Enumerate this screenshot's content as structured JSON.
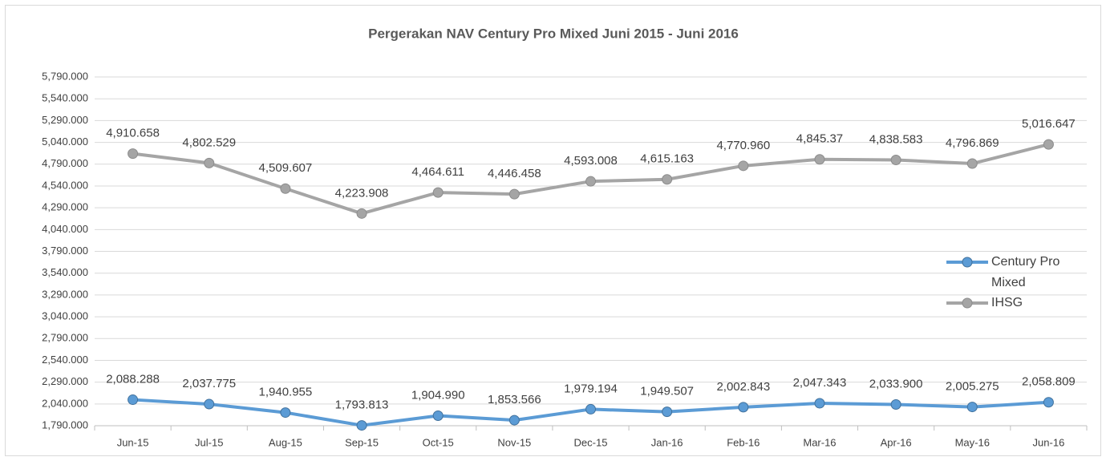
{
  "chart_data": {
    "type": "line",
    "title": "Pergerakan NAV Century Pro Mixed Juni 2015 - Juni 2016",
    "categories": [
      "Jun-15",
      "Jul-15",
      "Aug-15",
      "Sep-15",
      "Oct-15",
      "Nov-15",
      "Dec-15",
      "Jan-16",
      "Feb-16",
      "Mar-16",
      "Apr-16",
      "May-16",
      "Jun-16"
    ],
    "series": [
      {
        "name": "Century Pro Mixed",
        "color": "#5b9bd5",
        "values": [
          2088.288,
          2037.775,
          1940.955,
          1793.813,
          1904.99,
          1853.566,
          1979.194,
          1949.507,
          2002.843,
          2047.343,
          2033.9,
          2005.275,
          2058.809
        ],
        "value_labels": [
          "2,088.288",
          "2,037.775",
          "1,940.955",
          "1,793.813",
          "1,904.990",
          "1,853.566",
          "1,979.194",
          "1,949.507",
          "2,002.843",
          "2,047.343",
          "2,033.900",
          "2,005.275",
          "2,058.809"
        ]
      },
      {
        "name": "IHSG",
        "color": "#a5a5a5",
        "values": [
          4910.658,
          4802.529,
          4509.607,
          4223.908,
          4464.611,
          4446.458,
          4593.008,
          4615.163,
          4770.96,
          4845.37,
          4838.583,
          4796.869,
          5016.647
        ],
        "value_labels": [
          "4,910.658",
          "4,802.529",
          "4,509.607",
          "4,223.908",
          "4,464.611",
          "4,446.458",
          "4,593.008",
          "4,615.163",
          "4,770.960",
          "4,845.37",
          "4,838.583",
          "4,796.869",
          "5,016.647"
        ]
      }
    ],
    "ylim": [
      1790,
      5790
    ],
    "yticks": [
      {
        "value": 1790,
        "label": "1,790.000"
      },
      {
        "value": 2040,
        "label": "2,040.000"
      },
      {
        "value": 2290,
        "label": "2,290.000"
      },
      {
        "value": 2540,
        "label": "2,540.000"
      },
      {
        "value": 2790,
        "label": "2,790.000"
      },
      {
        "value": 3040,
        "label": "3,040.000"
      },
      {
        "value": 3290,
        "label": "3,290.000"
      },
      {
        "value": 3540,
        "label": "3,540.000"
      },
      {
        "value": 3790,
        "label": "3,790.000"
      },
      {
        "value": 4040,
        "label": "4,040.000"
      },
      {
        "value": 4290,
        "label": "4,290.000"
      },
      {
        "value": 4540,
        "label": "4,540.000"
      },
      {
        "value": 4790,
        "label": "4,790.000"
      },
      {
        "value": 5040,
        "label": "5,040.000"
      },
      {
        "value": 5290,
        "label": "5,290.000"
      },
      {
        "value": 5540,
        "label": "5,540.000"
      },
      {
        "value": 5790,
        "label": "5,790.000"
      }
    ],
    "grid": true,
    "legend": "right"
  }
}
